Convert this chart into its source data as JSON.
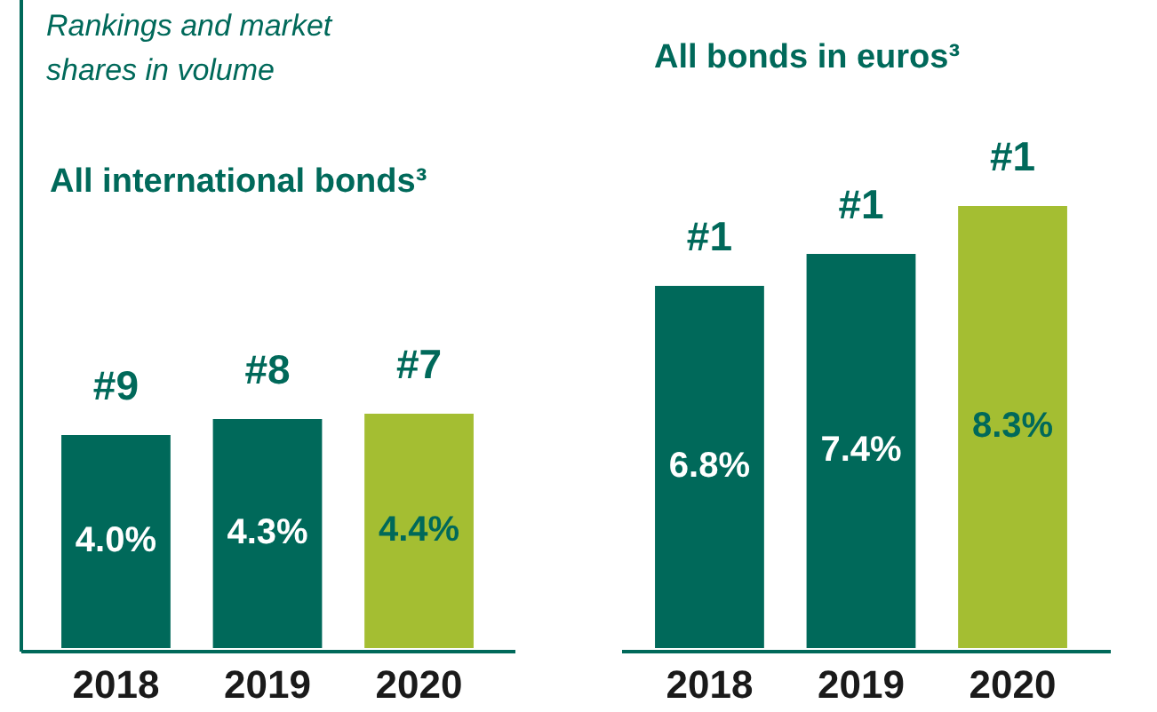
{
  "chart_data": [
    {
      "type": "bar",
      "title": "All international bonds³",
      "categories": [
        "2018",
        "2019",
        "2020"
      ],
      "values": [
        4.0,
        4.3,
        4.4
      ],
      "colors": [
        "#00695a",
        "#00695a",
        "#a4be32"
      ],
      "value_labels": [
        "4.0%",
        "4.3%",
        "4.4%"
      ],
      "tick_labels": "x",
      "annotations": [
        "Rankings and market shares in volume",
        {
          "text": "#9",
          "x": "2018",
          "y": 4.0
        },
        {
          "text": "#8",
          "x": "2019",
          "y": 4.3
        },
        {
          "text": "#7",
          "x": "2020",
          "y": 4.4
        }
      ]
    },
    {
      "type": "bar",
      "title": "All bonds in euros³",
      "categories": [
        "2018",
        "2019",
        "2020"
      ],
      "values": [
        6.8,
        7.4,
        8.3
      ],
      "colors": [
        "#00695a",
        "#00695a",
        "#a4be32"
      ],
      "value_labels": [
        "6.8%",
        "7.4%",
        "8.3%"
      ],
      "tick_labels": "x",
      "annotations": [
        {
          "text": "#1",
          "x": "2018",
          "y": 6.8
        },
        {
          "text": "#1",
          "x": "2019",
          "y": 7.4
        },
        {
          "text": "#1",
          "x": "2020",
          "y": 8.3
        }
      ]
    }
  ]
}
